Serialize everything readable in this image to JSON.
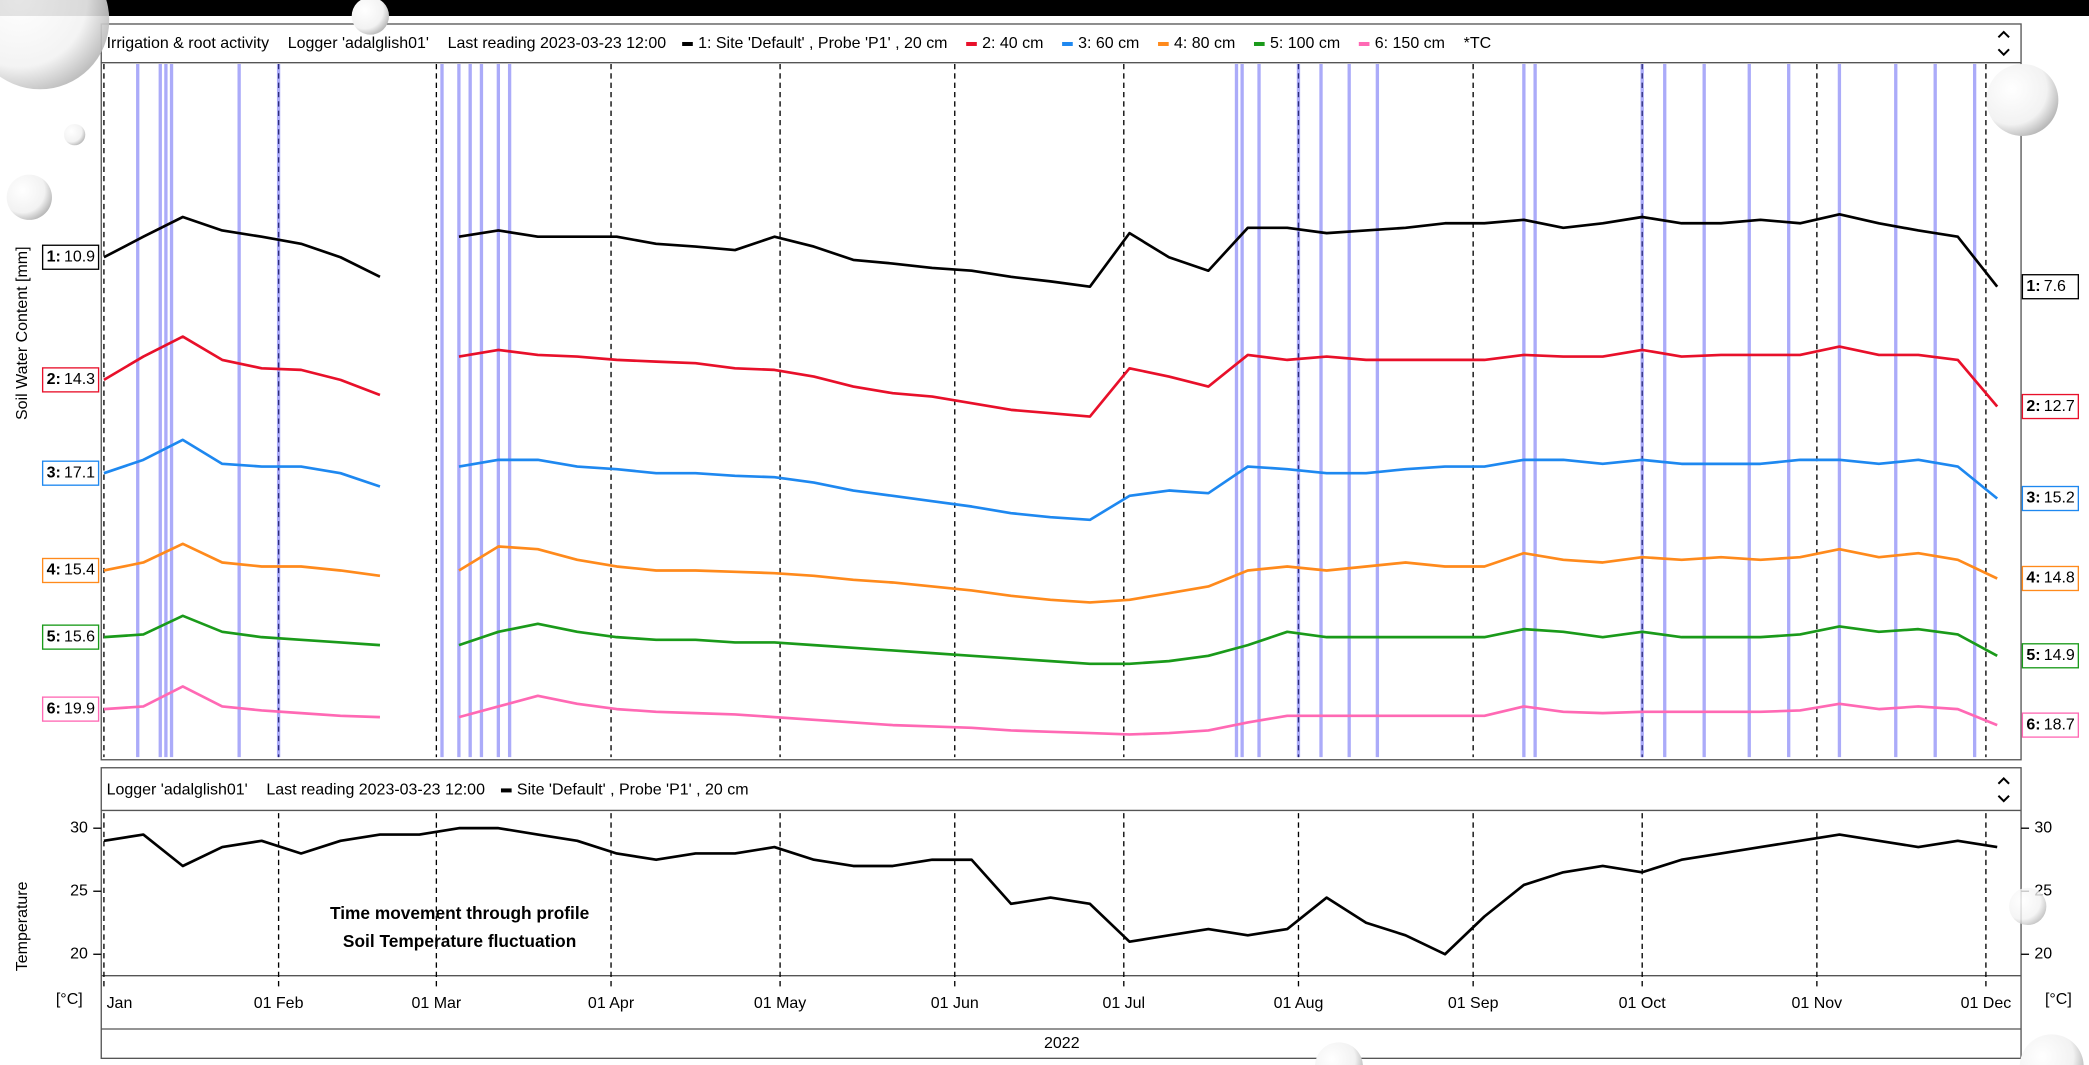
{
  "chart_data": [
    {
      "type": "line",
      "title": "Irrigation & root activity",
      "logger": "Logger 'adalglish01'",
      "last_reading": "Last reading 2023-03-23 12:00",
      "legend_extra": "*TC",
      "ylabel": "Soil Water Content [mm]",
      "xlim": [
        "2022-01-01",
        "2022-12-07"
      ],
      "x": [
        "2022-01-01",
        "2022-01-08",
        "2022-01-15",
        "2022-01-22",
        "2022-01-29",
        "2022-02-05",
        "2022-02-12",
        "2022-02-19",
        "2022-02-26",
        "2022-03-05",
        "2022-03-12",
        "2022-03-19",
        "2022-03-26",
        "2022-04-02",
        "2022-04-09",
        "2022-04-16",
        "2022-04-23",
        "2022-04-30",
        "2022-05-07",
        "2022-05-14",
        "2022-05-21",
        "2022-05-28",
        "2022-06-04",
        "2022-06-11",
        "2022-06-18",
        "2022-06-25",
        "2022-07-02",
        "2022-07-09",
        "2022-07-16",
        "2022-07-23",
        "2022-07-30",
        "2022-08-06",
        "2022-08-13",
        "2022-08-20",
        "2022-08-27",
        "2022-09-03",
        "2022-09-10",
        "2022-09-17",
        "2022-09-24",
        "2022-10-01",
        "2022-10-08",
        "2022-10-15",
        "2022-10-22",
        "2022-10-29",
        "2022-11-05",
        "2022-11-12",
        "2022-11-19",
        "2022-11-26",
        "2022-12-03"
      ],
      "series": [
        {
          "name": "1: Site 'Default' , Probe 'P1' , 20 cm",
          "prefix": "1:",
          "color": "#000000",
          "values": [
            10.9,
            13.2,
            15.4,
            13.9,
            13.2,
            12.4,
            10.9,
            8.7,
            null,
            13.2,
            13.9,
            13.2,
            13.2,
            13.2,
            12.4,
            12.1,
            11.7,
            13.2,
            12.1,
            10.6,
            10.2,
            9.7,
            9.4,
            8.7,
            8.2,
            7.6,
            13.6,
            10.9,
            9.4,
            14.2,
            14.2,
            13.6,
            13.9,
            14.2,
            14.7,
            14.7,
            15.1,
            14.2,
            14.7,
            15.4,
            14.7,
            14.7,
            15.1,
            14.7,
            15.7,
            14.7,
            13.9,
            13.2,
            7.6
          ]
        },
        {
          "name": "2: 40 cm",
          "prefix": "2:",
          "color": "#e8102a",
          "values": [
            14.3,
            15.7,
            16.9,
            15.5,
            15.0,
            14.9,
            14.3,
            13.4,
            null,
            15.7,
            16.1,
            15.8,
            15.7,
            15.5,
            15.4,
            15.3,
            15.0,
            14.9,
            14.5,
            13.9,
            13.5,
            13.3,
            12.9,
            12.5,
            12.3,
            12.1,
            15.0,
            14.5,
            13.9,
            15.8,
            15.5,
            15.7,
            15.5,
            15.5,
            15.5,
            15.5,
            15.8,
            15.7,
            15.7,
            16.1,
            15.7,
            15.8,
            15.8,
            15.8,
            16.3,
            15.8,
            15.8,
            15.5,
            12.7
          ]
        },
        {
          "name": "3: 60 cm",
          "prefix": "3:",
          "color": "#1e88f0",
          "values": [
            17.1,
            18.1,
            19.6,
            17.8,
            17.6,
            17.6,
            17.1,
            16.1,
            null,
            17.6,
            18.1,
            18.1,
            17.6,
            17.4,
            17.1,
            17.1,
            16.9,
            16.8,
            16.4,
            15.8,
            15.4,
            15.0,
            14.6,
            14.1,
            13.8,
            13.6,
            15.4,
            15.8,
            15.6,
            17.6,
            17.4,
            17.1,
            17.1,
            17.4,
            17.6,
            17.6,
            18.1,
            18.1,
            17.8,
            18.1,
            17.8,
            17.8,
            17.8,
            18.1,
            18.1,
            17.8,
            18.1,
            17.6,
            15.2
          ]
        },
        {
          "name": "4: 80 cm",
          "prefix": "4:",
          "color": "#ff8a1c",
          "values": [
            15.4,
            16.0,
            17.4,
            16.0,
            15.7,
            15.7,
            15.4,
            15.0,
            null,
            15.4,
            17.2,
            17.0,
            16.2,
            15.7,
            15.4,
            15.4,
            15.3,
            15.2,
            15.0,
            14.7,
            14.5,
            14.2,
            13.9,
            13.5,
            13.2,
            13.0,
            13.2,
            13.7,
            14.2,
            15.4,
            15.7,
            15.4,
            15.7,
            16.0,
            15.7,
            15.7,
            16.7,
            16.2,
            16.0,
            16.4,
            16.2,
            16.4,
            16.2,
            16.4,
            17.0,
            16.4,
            16.7,
            16.2,
            14.8
          ]
        },
        {
          "name": "5: 100 cm",
          "prefix": "5:",
          "color": "#1a9a1a",
          "values": [
            15.6,
            15.7,
            16.4,
            15.8,
            15.6,
            15.5,
            15.4,
            15.3,
            null,
            15.3,
            15.8,
            16.1,
            15.8,
            15.6,
            15.5,
            15.5,
            15.4,
            15.4,
            15.3,
            15.2,
            15.1,
            15.0,
            14.9,
            14.8,
            14.7,
            14.6,
            14.6,
            14.7,
            14.9,
            15.3,
            15.8,
            15.6,
            15.6,
            15.6,
            15.6,
            15.6,
            15.9,
            15.8,
            15.6,
            15.8,
            15.6,
            15.6,
            15.6,
            15.7,
            16.0,
            15.8,
            15.9,
            15.7,
            14.9
          ]
        },
        {
          "name": "6: 150 cm",
          "prefix": "6:",
          "color": "#ff69b4",
          "values": [
            19.9,
            20.1,
            21.6,
            20.1,
            19.8,
            19.6,
            19.4,
            19.3,
            null,
            19.3,
            20.1,
            20.9,
            20.3,
            19.9,
            19.7,
            19.6,
            19.5,
            19.3,
            19.1,
            18.9,
            18.7,
            18.6,
            18.5,
            18.3,
            18.2,
            18.1,
            18.0,
            18.1,
            18.3,
            18.9,
            19.4,
            19.4,
            19.4,
            19.4,
            19.4,
            19.4,
            20.1,
            19.7,
            19.6,
            19.7,
            19.7,
            19.7,
            19.7,
            19.8,
            20.3,
            19.9,
            20.1,
            19.9,
            18.7
          ]
        }
      ],
      "irrigation_events": [
        "2022-01-07",
        "2022-01-11",
        "2022-01-12",
        "2022-01-13",
        "2022-01-25",
        "2022-02-01",
        "2022-03-02",
        "2022-03-05",
        "2022-03-07",
        "2022-03-09",
        "2022-03-12",
        "2022-03-14",
        "2022-07-21",
        "2022-07-22",
        "2022-07-25",
        "2022-08-01",
        "2022-08-05",
        "2022-08-10",
        "2022-08-15",
        "2022-09-10",
        "2022-09-12",
        "2022-10-01",
        "2022-10-05",
        "2022-10-12",
        "2022-10-20",
        "2022-10-27",
        "2022-11-05",
        "2022-11-15",
        "2022-11-22",
        "2022-11-29"
      ],
      "irrigation_color": "#5a5af5"
    },
    {
      "type": "line",
      "logger": "Logger 'adalglish01'",
      "last_reading": "Last reading 2023-03-23 12:00",
      "ylabel": "Temperature",
      "yunit": "[°C]",
      "xlabel": "2022",
      "annotations": [
        "Time movement through profile",
        "Soil Temperature fluctuation"
      ],
      "xlim": [
        "2022-01-01",
        "2022-12-07"
      ],
      "xticks": [
        {
          "value": "2022-01-01",
          "label": "Jan"
        },
        {
          "value": "2022-02-01",
          "label": "01 Feb"
        },
        {
          "value": "2022-03-01",
          "label": "01 Mar"
        },
        {
          "value": "2022-04-01",
          "label": "01 Apr"
        },
        {
          "value": "2022-05-01",
          "label": "01 May"
        },
        {
          "value": "2022-06-01",
          "label": "01 Jun"
        },
        {
          "value": "2022-07-01",
          "label": "01 Jul"
        },
        {
          "value": "2022-08-01",
          "label": "01 Aug"
        },
        {
          "value": "2022-09-01",
          "label": "01 Sep"
        },
        {
          "value": "2022-10-01",
          "label": "01 Oct"
        },
        {
          "value": "2022-11-01",
          "label": "01 Nov"
        },
        {
          "value": "2022-12-01",
          "label": "01 Dec"
        }
      ],
      "ylim": [
        18.3,
        31.2
      ],
      "yticks": [
        20,
        25,
        30
      ],
      "x": [
        "2022-01-01",
        "2022-01-08",
        "2022-01-15",
        "2022-01-22",
        "2022-01-29",
        "2022-02-05",
        "2022-02-12",
        "2022-02-19",
        "2022-02-26",
        "2022-03-05",
        "2022-03-12",
        "2022-03-19",
        "2022-03-26",
        "2022-04-02",
        "2022-04-09",
        "2022-04-16",
        "2022-04-23",
        "2022-04-30",
        "2022-05-07",
        "2022-05-14",
        "2022-05-21",
        "2022-05-28",
        "2022-06-04",
        "2022-06-11",
        "2022-06-18",
        "2022-06-25",
        "2022-07-02",
        "2022-07-09",
        "2022-07-16",
        "2022-07-23",
        "2022-07-30",
        "2022-08-06",
        "2022-08-13",
        "2022-08-20",
        "2022-08-27",
        "2022-09-03",
        "2022-09-10",
        "2022-09-17",
        "2022-09-24",
        "2022-10-01",
        "2022-10-08",
        "2022-10-15",
        "2022-10-22",
        "2022-10-29",
        "2022-11-05",
        "2022-11-12",
        "2022-11-19",
        "2022-11-26",
        "2022-12-03"
      ],
      "series": [
        {
          "name": "Site 'Default' , Probe 'P1' , 20 cm",
          "color": "#000000",
          "values": [
            29,
            29.5,
            27,
            28.5,
            29,
            28,
            29,
            29.5,
            29.5,
            30,
            30,
            29.5,
            29,
            28,
            27.5,
            28,
            28,
            28.5,
            27.5,
            27,
            27,
            27.5,
            27.5,
            24,
            24.5,
            24,
            21,
            21.5,
            22,
            21.5,
            22,
            24.5,
            22.5,
            21.5,
            20,
            23,
            25.5,
            26.5,
            27,
            26.5,
            27.5,
            28,
            28.5,
            29,
            29.5,
            29,
            28.5,
            29,
            28.5
          ]
        }
      ]
    }
  ]
}
